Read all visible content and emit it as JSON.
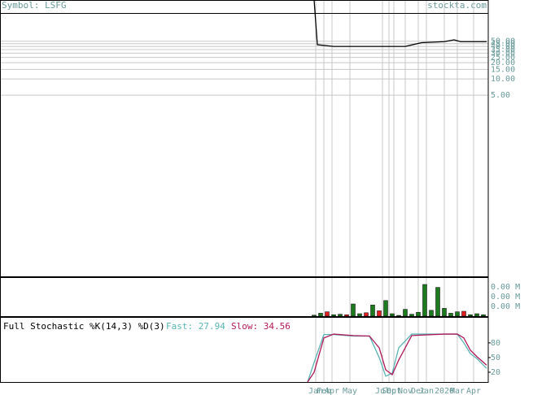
{
  "header": {
    "symbol": "Symbol: LSFG",
    "site": "stockta.com"
  },
  "chart_data": [
    {
      "type": "line",
      "log_scale": true,
      "grid": true,
      "xlim": [
        -96.5,
        53.5
      ],
      "xticks": [
        {
          "value": 0.5,
          "label": "Jan"
        },
        {
          "value": 3,
          "label": "Feb"
        },
        {
          "value": 5.5,
          "label": "Apr"
        },
        {
          "value": 11,
          "label": "May"
        },
        {
          "value": 21,
          "label": "Jul"
        },
        {
          "value": 23,
          "label": "Sep"
        },
        {
          "value": 24.5,
          "label": "Oct"
        },
        {
          "value": 28,
          "label": "Nov"
        },
        {
          "value": 32,
          "label": "Dec"
        },
        {
          "value": 34.5,
          "label": "Jan"
        },
        {
          "value": 40,
          "label": "2020"
        },
        {
          "value": 44,
          "label": "Mar"
        },
        {
          "value": 49,
          "label": "Apr"
        }
      ],
      "ylim": [
        0.0022,
        290
      ],
      "yticks": [
        {
          "value": 5,
          "label": "5.00"
        },
        {
          "value": 10,
          "label": "10.00"
        },
        {
          "value": 15,
          "label": "15.00"
        },
        {
          "value": 20,
          "label": "20.00"
        },
        {
          "value": 25,
          "label": "25.00"
        },
        {
          "value": 30,
          "label": "30.00"
        },
        {
          "value": 35,
          "label": "35.00"
        },
        {
          "value": 40,
          "label": "40.00"
        },
        {
          "value": 45,
          "label": "45.00"
        },
        {
          "value": 50,
          "label": "50.00"
        }
      ],
      "x": [
        0,
        1,
        6,
        28,
        33,
        40,
        43,
        45,
        53
      ],
      "series": [
        {
          "color": "#000000",
          "values": [
            290,
            43,
            40,
            40,
            47,
            49,
            53,
            49,
            49
          ]
        }
      ]
    },
    {
      "type": "bar",
      "ylim": [
        0,
        4000
      ],
      "yticks": [
        {
          "value": 3000,
          "label": "0.00 M"
        },
        {
          "value": 2000,
          "label": "0.00 M"
        },
        {
          "value": 1000,
          "label": "0.00 M"
        }
      ],
      "x": [
        0,
        2,
        4,
        6,
        8,
        10,
        12,
        14,
        16,
        18,
        20,
        22,
        24,
        26,
        28,
        30,
        32,
        34,
        36,
        38,
        40,
        42,
        44,
        46,
        48,
        50,
        52
      ],
      "values": [
        100,
        300,
        450,
        150,
        200,
        150,
        1250,
        250,
        350,
        1150,
        550,
        1600,
        250,
        80,
        700,
        200,
        400,
        3250,
        600,
        2950,
        800,
        300,
        450,
        500,
        150,
        250,
        150
      ],
      "colors": [
        "#1e7a1e",
        "#1e7a1e",
        "#e02020",
        "#1e7a1e",
        "#1e7a1e",
        "#e02020",
        "#1e7a1e",
        "#1e7a1e",
        "#e02020",
        "#1e7a1e",
        "#e02020",
        "#1e7a1e",
        "#1e7a1e",
        "#1e7a1e",
        "#1e7a1e",
        "#1e7a1e",
        "#1e7a1e",
        "#1e7a1e",
        "#1e7a1e",
        "#1e7a1e",
        "#1e7a1e",
        "#1e7a1e",
        "#1e7a1e",
        "#e02020",
        "#1e7a1e",
        "#1e7a1e",
        "#1e7a1e"
      ]
    },
    {
      "type": "line",
      "title": "Full Stochastic %K(14,3) %D(3)",
      "ylim": [
        0,
        133
      ],
      "yticks": [
        20,
        50,
        80
      ],
      "x": [
        -2,
        0,
        3,
        6,
        12,
        17,
        20,
        22,
        24,
        26,
        30,
        40,
        44,
        46,
        48,
        50,
        53
      ],
      "series": [
        {
          "name": "Fast: 27.94",
          "color": "#5ab4b4",
          "values": [
            0,
            40,
            97,
            97,
            94,
            94,
            50,
            12,
            18,
            70,
            98,
            98,
            98,
            80,
            58,
            48,
            27.94
          ]
        },
        {
          "name": "Slow: 34.56",
          "color": "#b0185a",
          "values": [
            0,
            20,
            90,
            98,
            95,
            94,
            70,
            25,
            15,
            45,
            95,
            98,
            98,
            90,
            65,
            52,
            34.56
          ]
        }
      ]
    }
  ]
}
